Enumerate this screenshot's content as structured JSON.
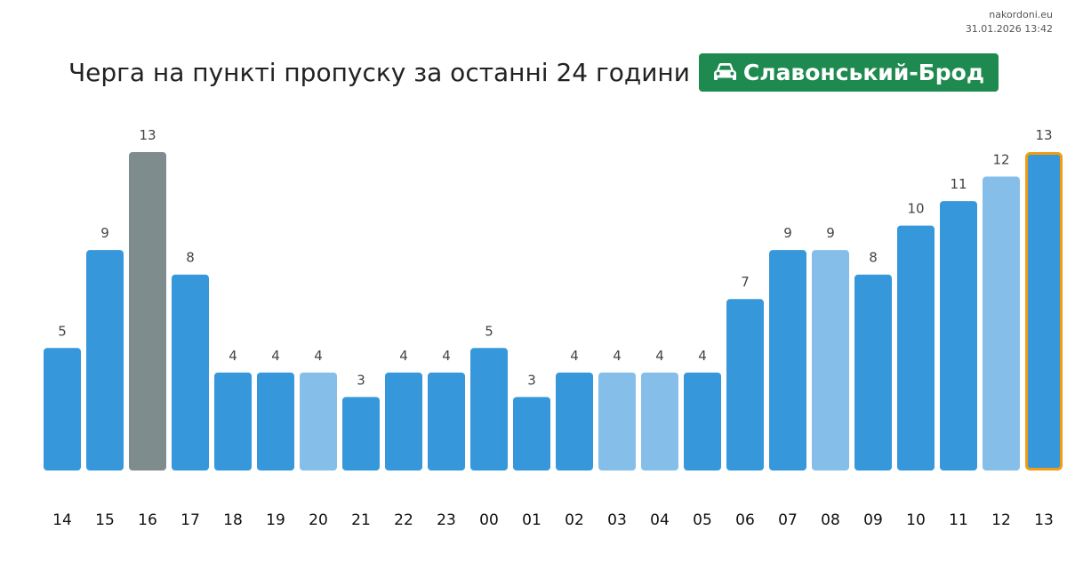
{
  "source": {
    "site": "nakordoni.eu",
    "timestamp": "31.01.2026 13:42"
  },
  "header": {
    "title": "Черга на пункті пропуску за останні 24 години",
    "badge_label": "Славонський-Брод",
    "badge_icon": "car-icon",
    "badge_color": "#1e8a4f"
  },
  "colors": {
    "bar_default": "#3698db",
    "bar_light": "#85bfe9",
    "bar_gray": "#7f8c8d",
    "bar_current_outline": "#f39c12",
    "value_label": "#444444",
    "tick_label": "#111111"
  },
  "chart_data": {
    "type": "bar",
    "title": "Черга на пункті пропуску за останні 24 години",
    "xlabel": "",
    "ylabel": "",
    "grid": false,
    "categories": [
      "14",
      "15",
      "16",
      "17",
      "18",
      "19",
      "20",
      "21",
      "22",
      "23",
      "00",
      "01",
      "02",
      "03",
      "04",
      "05",
      "06",
      "07",
      "08",
      "09",
      "10",
      "11",
      "12",
      "13"
    ],
    "values": [
      5,
      9,
      13,
      8,
      4,
      4,
      4,
      3,
      4,
      4,
      5,
      3,
      4,
      4,
      4,
      4,
      7,
      9,
      9,
      8,
      10,
      11,
      12,
      13
    ],
    "bar_styles": [
      "default",
      "default",
      "gray",
      "default",
      "default",
      "default",
      "light",
      "default",
      "default",
      "default",
      "default",
      "default",
      "default",
      "light",
      "light",
      "default",
      "default",
      "default",
      "light",
      "default",
      "default",
      "default",
      "light",
      "current"
    ],
    "ylim": [
      0,
      13
    ]
  }
}
